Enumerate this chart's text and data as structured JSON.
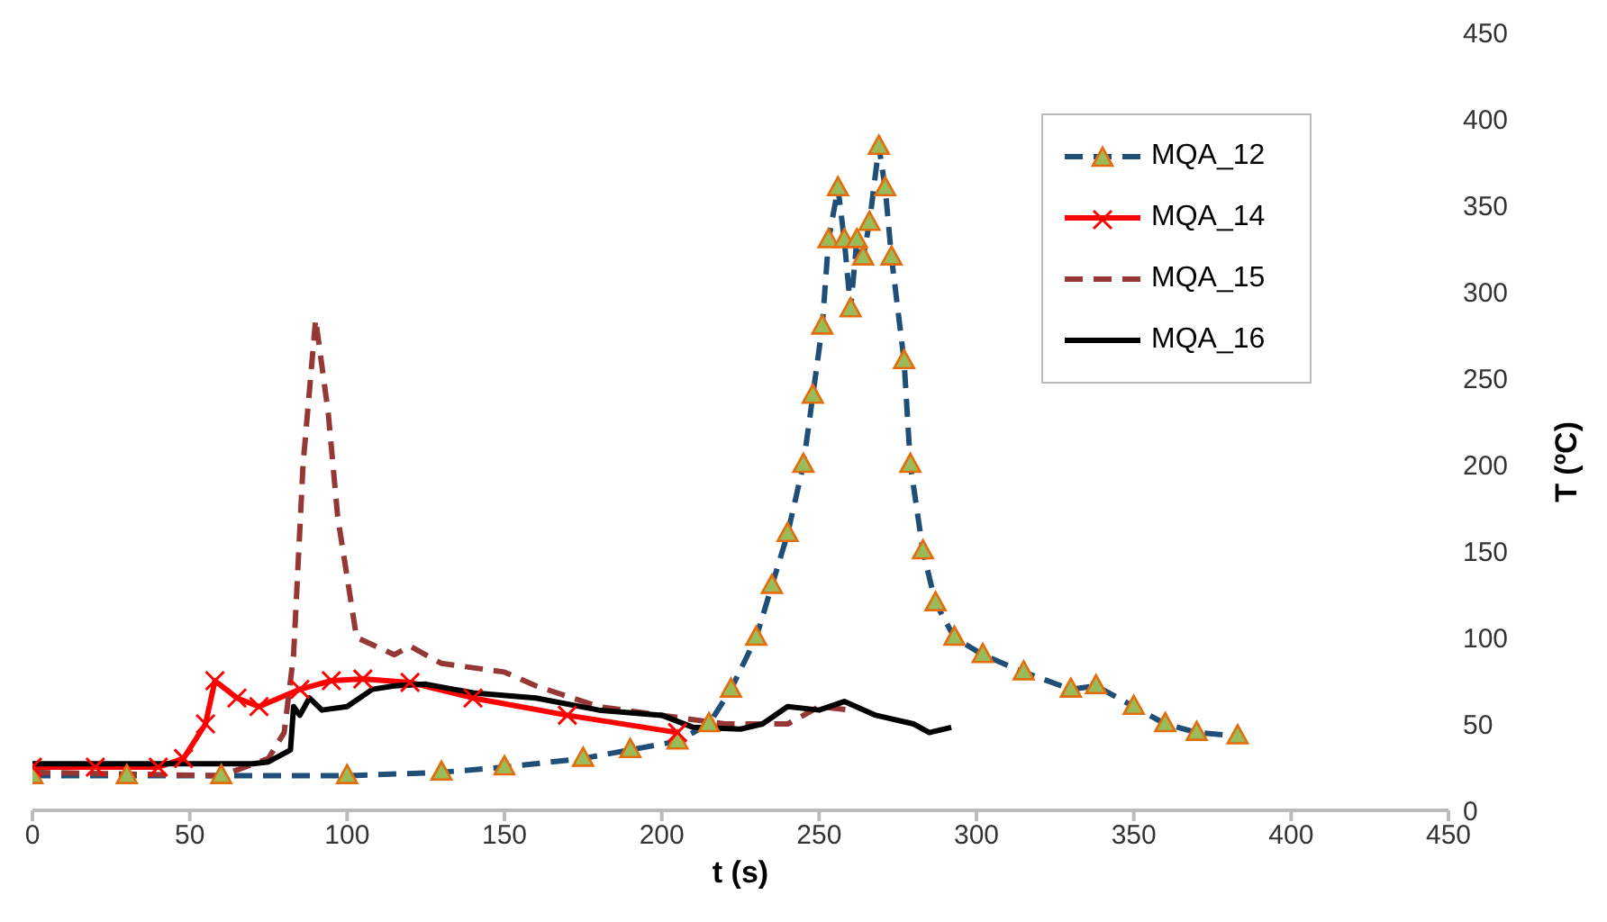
{
  "chart_data": {
    "type": "line",
    "xlabel": "t (s)",
    "ylabel": "T (ºC)",
    "xlim": [
      0,
      450
    ],
    "xticks": [
      0,
      50,
      100,
      150,
      200,
      250,
      300,
      350,
      400,
      450
    ],
    "ylim": [
      0,
      450
    ],
    "yticks": [
      0,
      50,
      100,
      150,
      200,
      250,
      300,
      350,
      400,
      450
    ],
    "grid": false,
    "legend": "top right",
    "series": [
      {
        "name": "MQA_12",
        "color": "#1f4e79",
        "line_style": "dashed",
        "marker": "triangle",
        "x": [
          0,
          30,
          60,
          100,
          130,
          150,
          175,
          190,
          205,
          215,
          222,
          230,
          235,
          240,
          245,
          248,
          251,
          253,
          256,
          258,
          260,
          262,
          264,
          266,
          269,
          271,
          273,
          277,
          279,
          283,
          287,
          293,
          302,
          315,
          330,
          338,
          350,
          360,
          370,
          383
        ],
        "values": [
          20,
          20,
          20,
          20,
          22,
          25,
          30,
          35,
          40,
          50,
          70,
          100,
          130,
          160,
          200,
          240,
          280,
          330,
          360,
          330,
          290,
          330,
          320,
          340,
          384,
          360,
          320,
          260,
          200,
          150,
          120,
          100,
          90,
          80,
          70,
          72,
          60,
          50,
          45,
          43
        ]
      },
      {
        "name": "MQA_14",
        "color": "#ff0000",
        "line_style": "solid",
        "marker": "cross",
        "x": [
          0,
          20,
          40,
          48,
          55,
          58,
          65,
          72,
          85,
          95,
          105,
          120,
          140,
          170,
          205
        ],
        "values": [
          25,
          25,
          25,
          30,
          50,
          75,
          65,
          60,
          70,
          75,
          76,
          74,
          65,
          55,
          45
        ]
      },
      {
        "name": "MQA_15",
        "color": "#953735",
        "line_style": "dashed",
        "marker": "none",
        "x": [
          0,
          30,
          60,
          75,
          80,
          83,
          86,
          90,
          94,
          97,
          103,
          115,
          120,
          130,
          150,
          160,
          180,
          200,
          220,
          240,
          250,
          260
        ],
        "values": [
          22,
          21,
          20,
          30,
          45,
          90,
          200,
          284,
          230,
          170,
          100,
          90,
          95,
          85,
          80,
          72,
          60,
          55,
          50,
          50,
          60,
          58
        ]
      },
      {
        "name": "MQA_16",
        "color": "#000000",
        "line_style": "solid",
        "marker": "none",
        "x": [
          0,
          40,
          70,
          75,
          82,
          83,
          85,
          88,
          92,
          100,
          108,
          115,
          125,
          140,
          160,
          180,
          200,
          210,
          225,
          232,
          240,
          250,
          258,
          268,
          280,
          285,
          292
        ],
        "values": [
          27,
          27,
          27,
          28,
          35,
          60,
          55,
          65,
          58,
          60,
          70,
          72,
          73,
          68,
          65,
          58,
          55,
          48,
          47,
          50,
          60,
          58,
          63,
          55,
          50,
          45,
          48
        ]
      }
    ]
  }
}
